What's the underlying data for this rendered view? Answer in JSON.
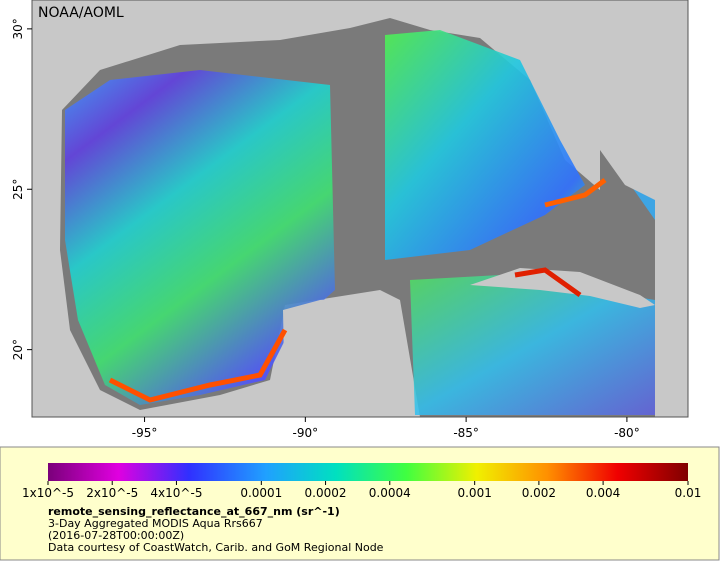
{
  "map": {
    "watermark": "NOAA/AOML",
    "xlim": [
      -98.5,
      -78.1
    ],
    "ylim": [
      17.9,
      30.9
    ],
    "lon_ticks": [
      {
        "value": -95,
        "label": "-95°"
      },
      {
        "value": -90,
        "label": "-90°"
      },
      {
        "value": -85,
        "label": "-85°"
      },
      {
        "value": -80,
        "label": "-80°"
      }
    ],
    "lat_ticks": [
      {
        "value": 20,
        "label": "20°"
      },
      {
        "value": 25,
        "label": "25°"
      },
      {
        "value": 30,
        "label": "30°"
      }
    ]
  },
  "legend": {
    "log": true,
    "colorbar_lim": [
      1e-05,
      0.01
    ],
    "colorbar_ticks": [
      {
        "value": 1e-05,
        "label": "1x10^-5"
      },
      {
        "value": 2e-05,
        "label": "2x10^-5"
      },
      {
        "value": 4e-05,
        "label": "4x10^-5"
      },
      0.0001,
      0.0002,
      0.0004,
      0.001,
      0.002,
      0.004,
      0.01
    ],
    "variable": "remote_sensing_reflectance_at_667_nm (sr^-1)",
    "lines": [
      "3-Day Aggregated MODIS Aqua Rrs667",
      "(2016-07-28T00:00:00Z)",
      "Data courtesy of CoastWatch, Carib. and GoM Regional Node"
    ]
  }
}
